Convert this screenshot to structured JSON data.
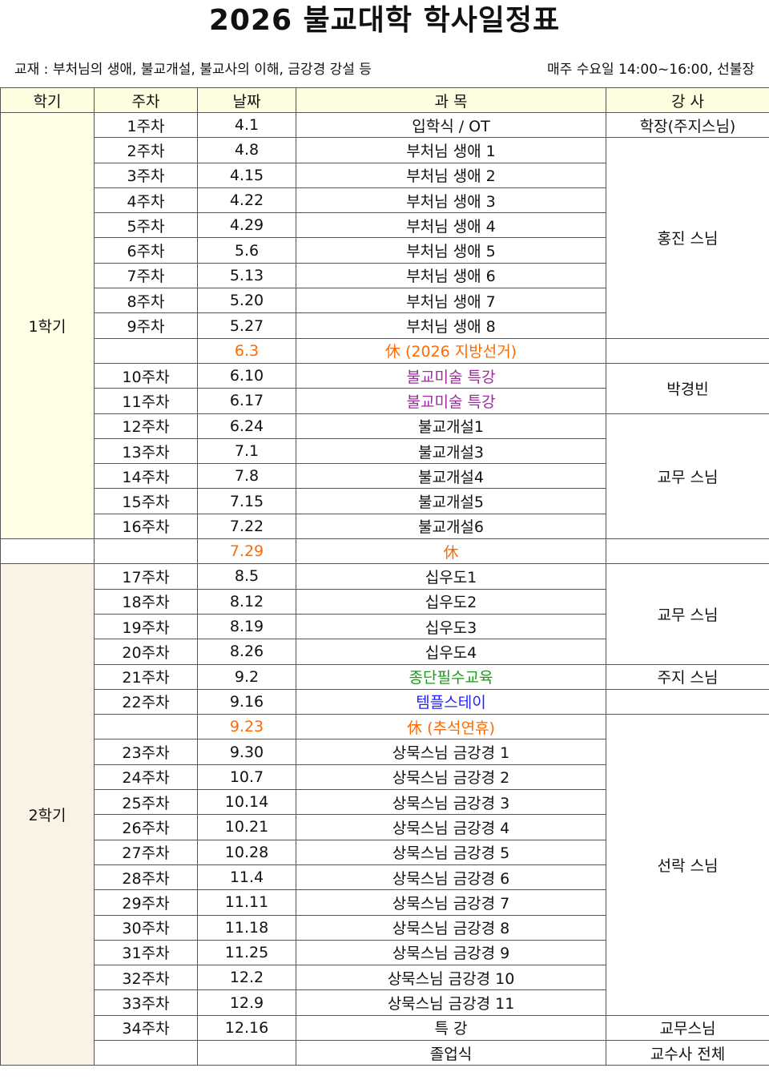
{
  "title": "2026 불교대학 학사일정표",
  "info_left": "교재 : 부처님의 생애, 불교개설, 불교사의 이해, 금강경 강설 등",
  "info_right": "매주 수요일 14:00~16:00, 선불장",
  "headers": [
    "학기",
    "주차",
    "날짜",
    "과 목",
    "강 사"
  ],
  "colors": {
    "header_bg": "#fffde0",
    "semester1_bg": "#ffffe6",
    "semester2_bg": "#fbf2e6",
    "holiday": "#ff6a00",
    "special": "#9b2c9b",
    "training": "#1a9a1a",
    "templestay": "#1f1fff"
  },
  "semesters": [
    {
      "label": "1학기",
      "rows": 17,
      "style": "s1"
    },
    {
      "label": "",
      "rows": 1,
      "style": ""
    },
    {
      "label": "2학기",
      "rows": 20,
      "style": "s2"
    }
  ],
  "instructors": [
    {
      "label": "학장(주지스님)",
      "rows": 1
    },
    {
      "label": "홍진 스님",
      "rows": 8
    },
    {
      "label": "",
      "rows": 1
    },
    {
      "label": "박경빈",
      "rows": 2
    },
    {
      "label": "교무 스님",
      "rows": 5
    },
    {
      "label": "",
      "rows": 1
    },
    {
      "label": "교무 스님",
      "rows": 4
    },
    {
      "label": "주지 스님",
      "rows": 1
    },
    {
      "label": "",
      "rows": 1
    },
    {
      "label": "선락 스님",
      "rows": 12
    },
    {
      "label": "교무스님",
      "rows": 1
    },
    {
      "label": "교수사 전체",
      "rows": 1
    }
  ],
  "rows": [
    {
      "week": "1주차",
      "date": "4.1",
      "subject": "입학식 / OT"
    },
    {
      "week": "2주차",
      "date": "4.8",
      "subject": "부처님 생애 1"
    },
    {
      "week": "3주차",
      "date": "4.15",
      "subject": "부처님 생애 2"
    },
    {
      "week": "4주차",
      "date": "4.22",
      "subject": "부처님 생애 3"
    },
    {
      "week": "5주차",
      "date": "4.29",
      "subject": "부처님 생애 4"
    },
    {
      "week": "6주차",
      "date": "5.6",
      "subject": "부처님 생애 5"
    },
    {
      "week": "7주차",
      "date": "5.13",
      "subject": "부처님 생애 6"
    },
    {
      "week": "8주차",
      "date": "5.20",
      "subject": "부처님 생애 7"
    },
    {
      "week": "9주차",
      "date": "5.27",
      "subject": "부처님 생애 8"
    },
    {
      "week": "",
      "date": "6.3",
      "subject": "休 (2026 지방선거)",
      "tone": "orange",
      "date_tone": "orange"
    },
    {
      "week": "10주차",
      "date": "6.10",
      "subject": "불교미술 특강",
      "tone": "purple"
    },
    {
      "week": "11주차",
      "date": "6.17",
      "subject": "불교미술 특강",
      "tone": "purple"
    },
    {
      "week": "12주차",
      "date": "6.24",
      "subject": "불교개설1"
    },
    {
      "week": "13주차",
      "date": "7.1",
      "subject": "불교개설3"
    },
    {
      "week": "14주차",
      "date": "7.8",
      "subject": "불교개설4"
    },
    {
      "week": "15주차",
      "date": "7.15",
      "subject": "불교개설5"
    },
    {
      "week": "16주차",
      "date": "7.22",
      "subject": "불교개설6"
    },
    {
      "week": "",
      "date": "7.29",
      "subject": "休",
      "tone": "orange",
      "date_tone": "orange"
    },
    {
      "week": "17주차",
      "date": "8.5",
      "subject": "십우도1"
    },
    {
      "week": "18주차",
      "date": "8.12",
      "subject": "십우도2"
    },
    {
      "week": "19주차",
      "date": "8.19",
      "subject": "십우도3"
    },
    {
      "week": "20주차",
      "date": "8.26",
      "subject": "십우도4"
    },
    {
      "week": "21주차",
      "date": "9.2",
      "subject": "종단필수교육",
      "tone": "green"
    },
    {
      "week": "22주차",
      "date": "9.16",
      "subject": "템플스테이",
      "tone": "blue"
    },
    {
      "week": "",
      "date": "9.23",
      "subject": "休 (추석연휴)",
      "tone": "orange",
      "date_tone": "orange"
    },
    {
      "week": "23주차",
      "date": "9.30",
      "subject": "상묵스님 금강경 1"
    },
    {
      "week": "24주차",
      "date": "10.7",
      "subject": "상묵스님 금강경 2"
    },
    {
      "week": "25주차",
      "date": "10.14",
      "subject": "상묵스님 금강경 3"
    },
    {
      "week": "26주차",
      "date": "10.21",
      "subject": "상묵스님 금강경 4"
    },
    {
      "week": "27주차",
      "date": "10.28",
      "subject": "상묵스님 금강경 5"
    },
    {
      "week": "28주차",
      "date": "11.4",
      "subject": "상묵스님 금강경 6"
    },
    {
      "week": "29주차",
      "date": "11.11",
      "subject": "상묵스님 금강경 7"
    },
    {
      "week": "30주차",
      "date": "11.18",
      "subject": "상묵스님 금강경 8"
    },
    {
      "week": "31주차",
      "date": "11.25",
      "subject": "상묵스님 금강경 9"
    },
    {
      "week": "32주차",
      "date": "12.2",
      "subject": "상묵스님 금강경 10"
    },
    {
      "week": "33주차",
      "date": "12.9",
      "subject": "상묵스님 금강경 11"
    },
    {
      "week": "34주차",
      "date": "12.16",
      "subject": "특 강"
    },
    {
      "week": "",
      "date": "",
      "subject": "졸업식"
    }
  ]
}
